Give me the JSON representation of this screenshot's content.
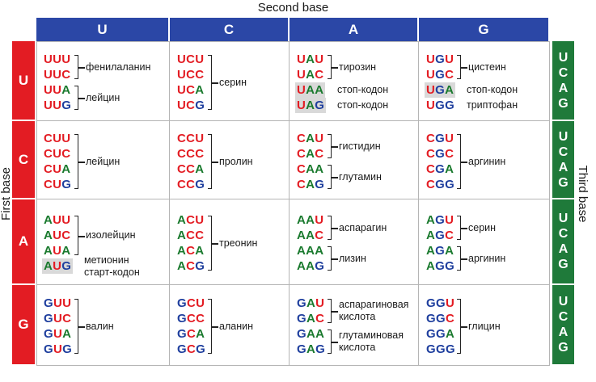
{
  "labels": {
    "second_base": "Second base",
    "first_base": "First base",
    "third_base": "Third base"
  },
  "bases": [
    "U",
    "C",
    "A",
    "G"
  ],
  "third_base_letters": [
    "U",
    "C",
    "A",
    "G"
  ],
  "colors": {
    "U": "#e31c23",
    "C": "#e31c23",
    "A": "#1a7a2e",
    "G": "#1f3f9e",
    "header_blue": "#2b47a6",
    "header_red": "#e31c23",
    "header_green": "#1f7a3a",
    "highlight": "#d9d9d9"
  },
  "cells": [
    {
      "row": "U",
      "col": "U",
      "codons": [
        "UUU",
        "UUC",
        "UUA",
        "UUG"
      ],
      "groups": [
        {
          "from": 0,
          "to": 1,
          "label": [
            "фенилаланин"
          ]
        },
        {
          "from": 2,
          "to": 3,
          "label": [
            "лейцин"
          ]
        }
      ]
    },
    {
      "row": "U",
      "col": "C",
      "codons": [
        "UCU",
        "UCC",
        "UCA",
        "UCG"
      ],
      "groups": [
        {
          "from": 0,
          "to": 3,
          "label": [
            "серин"
          ]
        }
      ]
    },
    {
      "row": "U",
      "col": "A",
      "codons": [
        "UAU",
        "UAC",
        "UAA",
        "UAG"
      ],
      "highlight": [
        2,
        3
      ],
      "groups": [
        {
          "from": 0,
          "to": 1,
          "label": [
            "тирозин"
          ]
        },
        {
          "from": 2,
          "to": 2,
          "label": [
            "стоп-кодон"
          ],
          "plain": true
        },
        {
          "from": 3,
          "to": 3,
          "label": [
            "стоп-кодон"
          ],
          "plain": true
        }
      ]
    },
    {
      "row": "U",
      "col": "G",
      "codons": [
        "UGU",
        "UGC",
        "UGA",
        "UGG"
      ],
      "highlight": [
        2
      ],
      "groups": [
        {
          "from": 0,
          "to": 1,
          "label": [
            "цистеин"
          ]
        },
        {
          "from": 2,
          "to": 2,
          "label": [
            "стоп-кодон"
          ],
          "plain": true
        },
        {
          "from": 3,
          "to": 3,
          "label": [
            "триптофан"
          ],
          "plain": true
        }
      ]
    },
    {
      "row": "C",
      "col": "U",
      "codons": [
        "CUU",
        "CUC",
        "CUA",
        "CUG"
      ],
      "groups": [
        {
          "from": 0,
          "to": 3,
          "label": [
            "лейцин"
          ]
        }
      ]
    },
    {
      "row": "C",
      "col": "C",
      "codons": [
        "CCU",
        "CCC",
        "CCA",
        "CCG"
      ],
      "groups": [
        {
          "from": 0,
          "to": 3,
          "label": [
            "пролин"
          ]
        }
      ]
    },
    {
      "row": "C",
      "col": "A",
      "codons": [
        "CAU",
        "CAC",
        "CAA",
        "CAG"
      ],
      "groups": [
        {
          "from": 0,
          "to": 1,
          "label": [
            "гистидин"
          ]
        },
        {
          "from": 2,
          "to": 3,
          "label": [
            "глутамин"
          ]
        }
      ]
    },
    {
      "row": "C",
      "col": "G",
      "codons": [
        "CGU",
        "CGC",
        "CGA",
        "CGG"
      ],
      "groups": [
        {
          "from": 0,
          "to": 3,
          "label": [
            "аргинин"
          ]
        }
      ]
    },
    {
      "row": "A",
      "col": "U",
      "codons": [
        "AUU",
        "AUC",
        "AUA",
        "AUG"
      ],
      "highlight": [
        3
      ],
      "groups": [
        {
          "from": 0,
          "to": 2,
          "label": [
            "изолейцин"
          ]
        },
        {
          "from": 3,
          "to": 3,
          "label": [
            "метионин",
            "старт-кодон"
          ],
          "plain": true
        }
      ]
    },
    {
      "row": "A",
      "col": "C",
      "codons": [
        "ACU",
        "ACC",
        "ACA",
        "ACG"
      ],
      "groups": [
        {
          "from": 0,
          "to": 3,
          "label": [
            "треонин"
          ]
        }
      ]
    },
    {
      "row": "A",
      "col": "A",
      "codons": [
        "AAU",
        "AAC",
        "AAA",
        "AAG"
      ],
      "groups": [
        {
          "from": 0,
          "to": 1,
          "label": [
            "аспарагин"
          ]
        },
        {
          "from": 2,
          "to": 3,
          "label": [
            "лизин"
          ]
        }
      ]
    },
    {
      "row": "A",
      "col": "G",
      "codons": [
        "AGU",
        "AGC",
        "AGA",
        "AGG"
      ],
      "groups": [
        {
          "from": 0,
          "to": 1,
          "label": [
            "серин"
          ]
        },
        {
          "from": 2,
          "to": 3,
          "label": [
            "аргинин"
          ]
        }
      ]
    },
    {
      "row": "G",
      "col": "U",
      "codons": [
        "GUU",
        "GUC",
        "GUA",
        "GUG"
      ],
      "groups": [
        {
          "from": 0,
          "to": 3,
          "label": [
            "валин"
          ]
        }
      ]
    },
    {
      "row": "G",
      "col": "C",
      "codons": [
        "GCU",
        "GCC",
        "GCA",
        "GCG"
      ],
      "groups": [
        {
          "from": 0,
          "to": 3,
          "label": [
            "аланин"
          ]
        }
      ]
    },
    {
      "row": "G",
      "col": "A",
      "codons": [
        "GAU",
        "GAC",
        "GAA",
        "GAG"
      ],
      "groups": [
        {
          "from": 0,
          "to": 1,
          "label": [
            "аспарагиновая",
            "кислота"
          ]
        },
        {
          "from": 2,
          "to": 3,
          "label": [
            "глутаминовая",
            "кислота"
          ]
        }
      ]
    },
    {
      "row": "G",
      "col": "G",
      "codons": [
        "GGU",
        "GGC",
        "GGA",
        "GGG"
      ],
      "groups": [
        {
          "from": 0,
          "to": 3,
          "label": [
            "глицин"
          ]
        }
      ]
    }
  ]
}
